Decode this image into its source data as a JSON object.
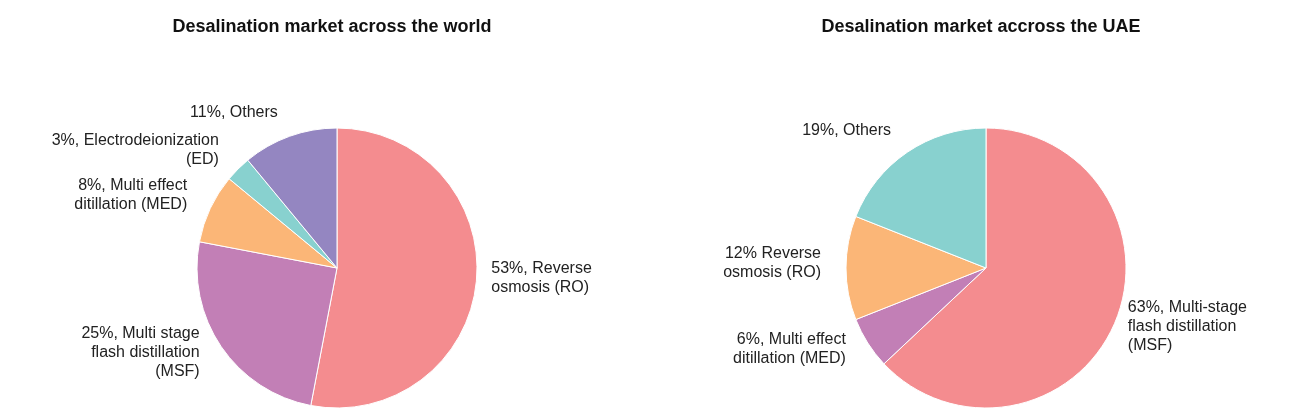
{
  "chart_data": [
    {
      "type": "pie",
      "title": "Desalination market across the world",
      "categories": [
        "53%, Reverse osmosis (RO)",
        "25%, Multi stage flash distillation (MSF)",
        "8%, Multi effect ditillation (MED)",
        "3%, Electrodeionization (ED)",
        "11%, Others"
      ],
      "values": [
        53,
        25,
        8,
        3,
        11
      ],
      "colors": [
        "#f48c8f",
        "#c27fb6",
        "#fbb677",
        "#88d1cf",
        "#9486c1"
      ]
    },
    {
      "type": "pie",
      "title": "Desalination market accross the UAE",
      "categories": [
        "63%, Multi-stage flash distillation (MSF)",
        "6%, Multi effect ditillation (MED)",
        "12% Reverse osmosis (RO)",
        "19%, Others"
      ],
      "values": [
        63,
        6,
        12,
        19
      ],
      "colors": [
        "#f48c8f",
        "#c27fb6",
        "#fbb677",
        "#88d1cf"
      ]
    }
  ]
}
